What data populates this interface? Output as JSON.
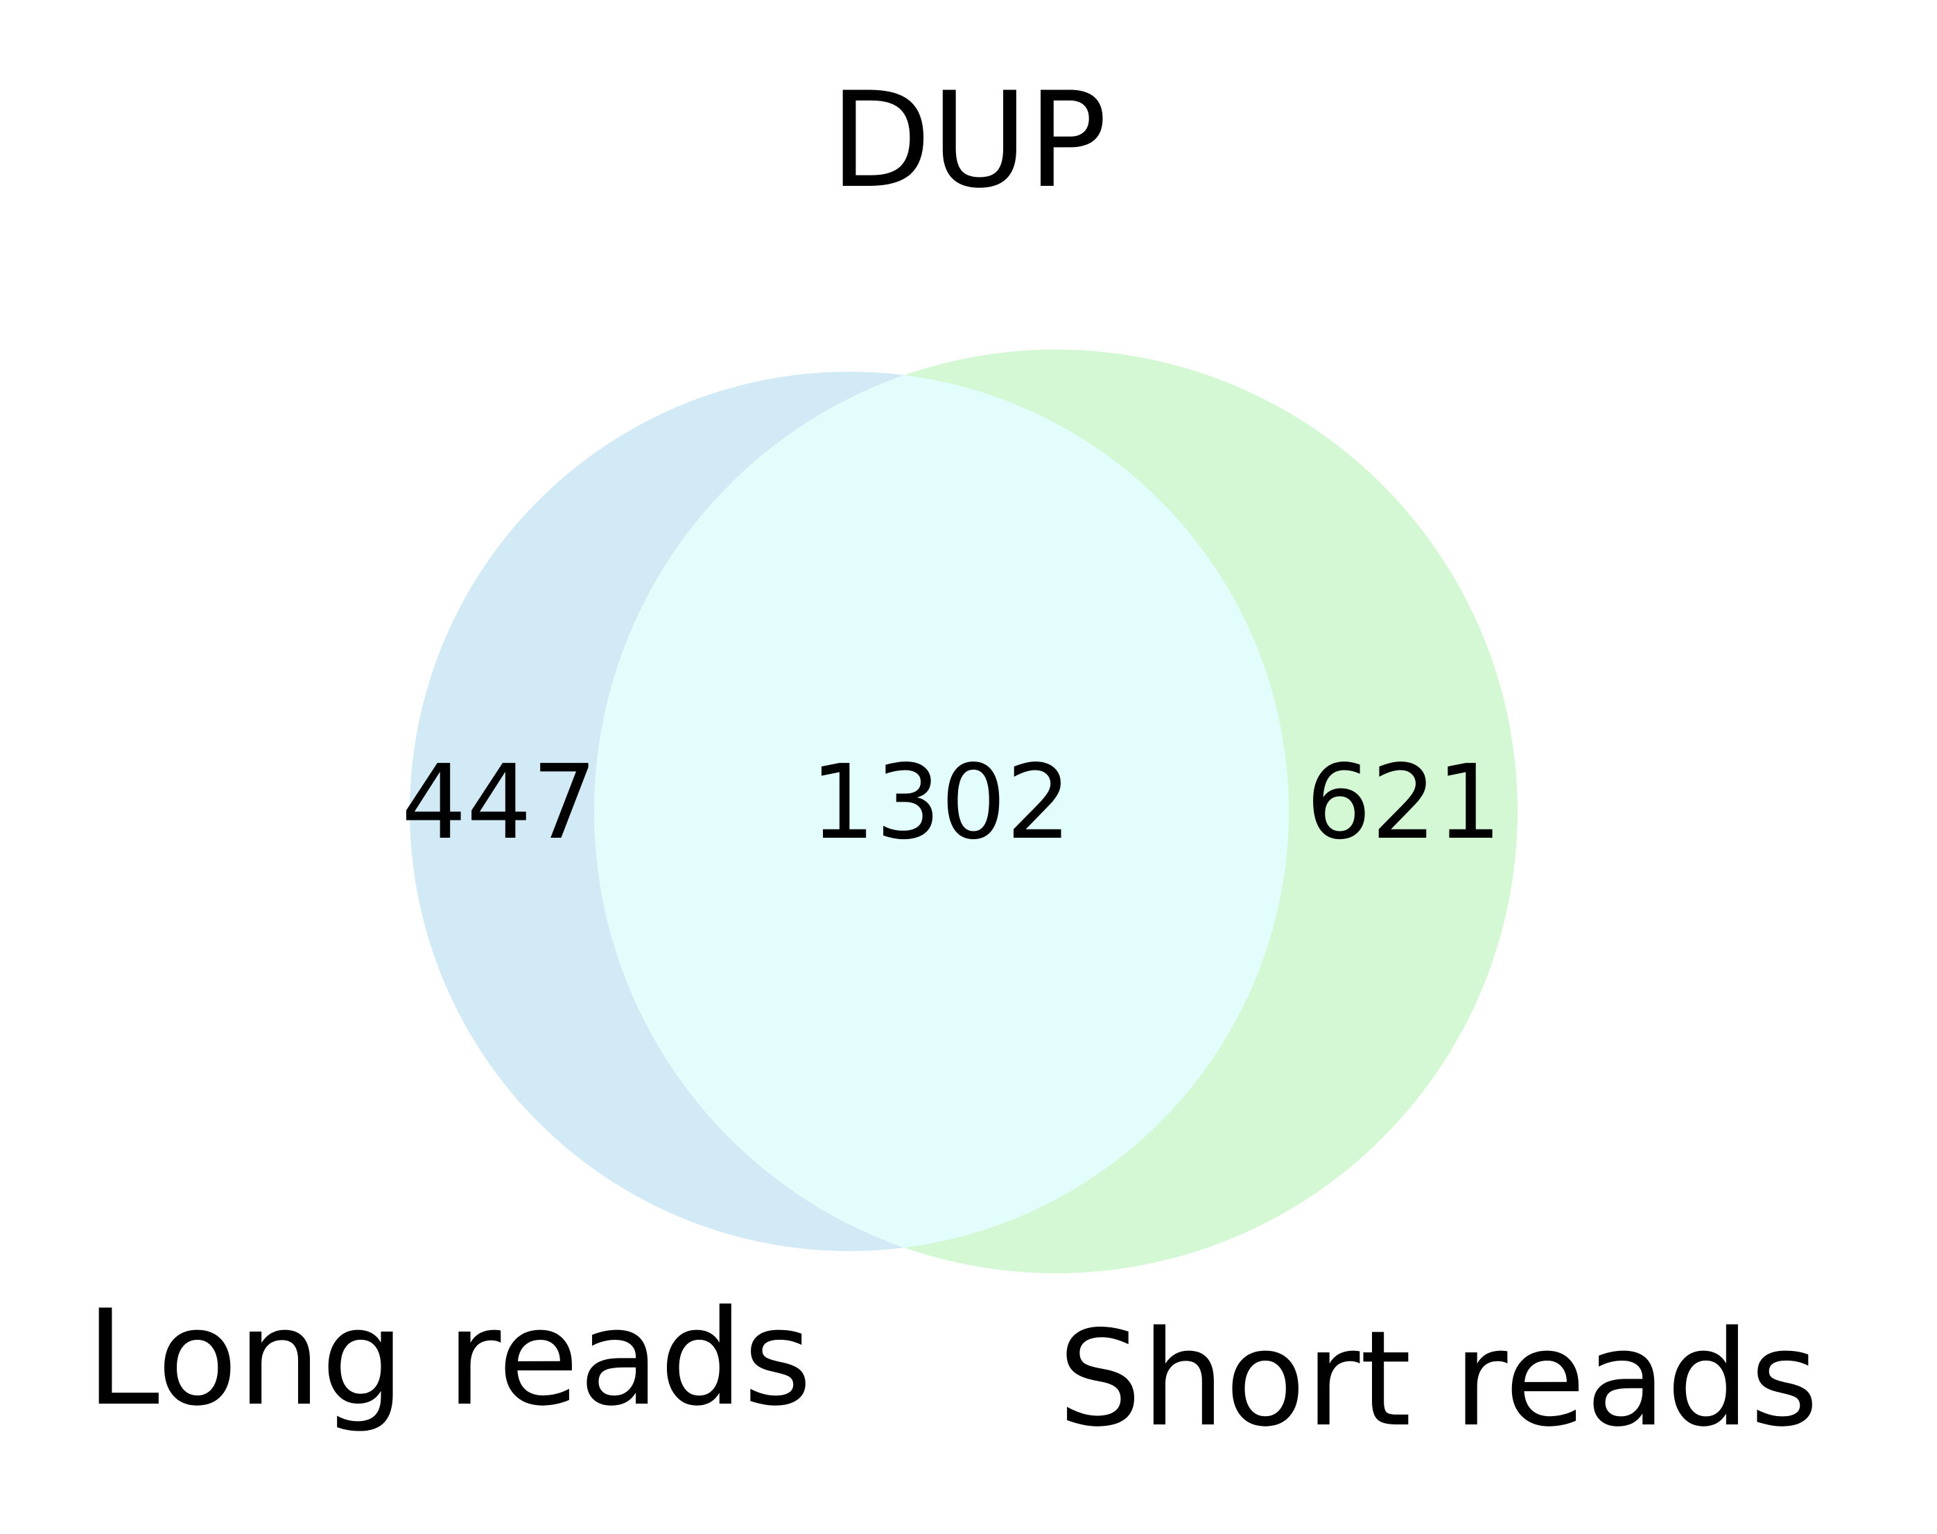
{
  "title": "DUP",
  "sets": {
    "left": {
      "label": "Long reads",
      "color": "#d1eaf5"
    },
    "right": {
      "label": "Short reads",
      "color": "#d3f8d3"
    },
    "overlap_color": "#e3fdfd"
  },
  "counts": {
    "left_only": "447",
    "both": "1302",
    "right_only": "621"
  }
}
